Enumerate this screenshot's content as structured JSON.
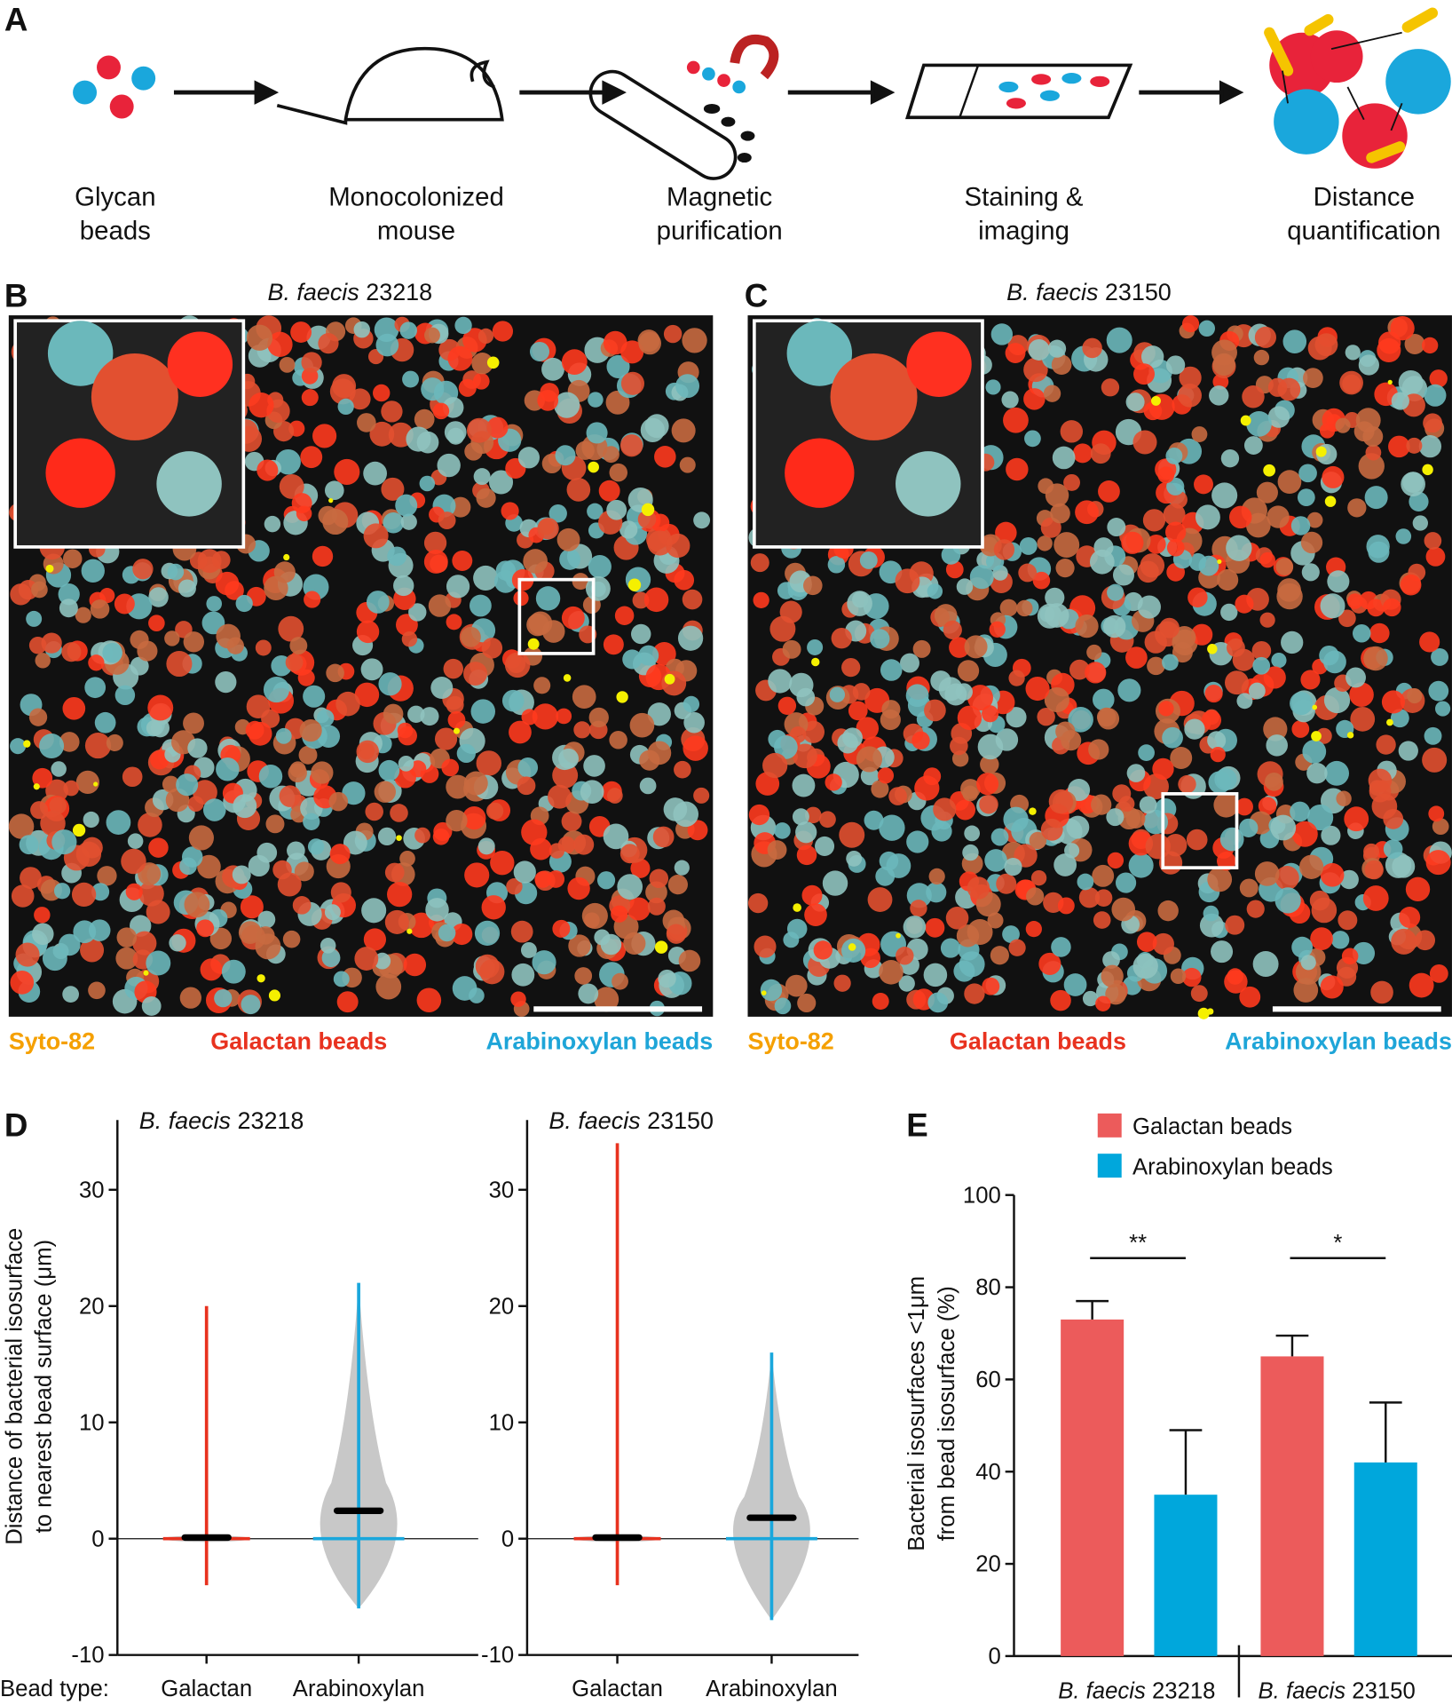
{
  "panel_labels": [
    "A",
    "B",
    "C",
    "D",
    "E"
  ],
  "workflow": {
    "steps": [
      [
        "Glycan",
        "beads"
      ],
      [
        "Monocolonized",
        "mouse"
      ],
      [
        "Magnetic",
        "purification"
      ],
      [
        "Staining &",
        "imaging"
      ],
      [
        "Distance",
        "quantification"
      ]
    ]
  },
  "micrographs": [
    {
      "title": [
        "B. faecis",
        "23218"
      ],
      "legend": [
        "Syto-82",
        "Galactan beads",
        "Arabinoxylan beads"
      ]
    },
    {
      "title": [
        "B. faecis",
        "23150"
      ],
      "legend": [
        "Syto-82",
        "Galactan beads",
        "Arabinoxylan beads"
      ]
    }
  ],
  "chart_data": [
    {
      "type": "violin",
      "title": [
        "B. faecis",
        "23218"
      ],
      "x_prefix": "Bead type:",
      "ylabel": [
        "Distance of bacterial isosurface",
        "to nearest bead surface (μm)"
      ],
      "categories": [
        "Galactan",
        "Arabinoxylan"
      ],
      "colors": [
        "#e8321f",
        "#1aa7dc"
      ],
      "median": [
        0.1,
        2.4
      ],
      "max": [
        20,
        22
      ],
      "min": [
        -4,
        -6
      ],
      "ylim": [
        -10,
        36
      ],
      "yticks": [
        -10,
        0,
        10,
        20,
        30
      ]
    },
    {
      "type": "violin",
      "title": [
        "B. faecis",
        "23150"
      ],
      "x_prefix": null,
      "ylabel": null,
      "categories": [
        "Galactan",
        "Arabinoxylan"
      ],
      "colors": [
        "#e8321f",
        "#1aa7dc"
      ],
      "median": [
        0.1,
        1.8
      ],
      "max": [
        34,
        16
      ],
      "min": [
        -4,
        -7
      ],
      "ylim": [
        -10,
        36
      ],
      "yticks": [
        -10,
        0,
        10,
        20,
        30
      ]
    },
    {
      "type": "bar",
      "ylabel": [
        "Bacterial isosurfaces <1μm",
        "from bead isosurface (%)"
      ],
      "groups": [
        [
          "B. faecis",
          "23218"
        ],
        [
          "B. faecis",
          "23150"
        ]
      ],
      "series": [
        {
          "name": "Galactan beads",
          "color": "#ec5b5b",
          "values": [
            73,
            65
          ],
          "errors": [
            4,
            4.5
          ]
        },
        {
          "name": "Arabinoxylan beads",
          "color": "#00a7dc",
          "values": [
            35,
            42
          ],
          "errors": [
            14,
            13
          ]
        }
      ],
      "significance": [
        "**",
        "*"
      ],
      "ylim": [
        0,
        100
      ],
      "yticks": [
        0,
        20,
        40,
        60,
        80,
        100
      ]
    }
  ]
}
